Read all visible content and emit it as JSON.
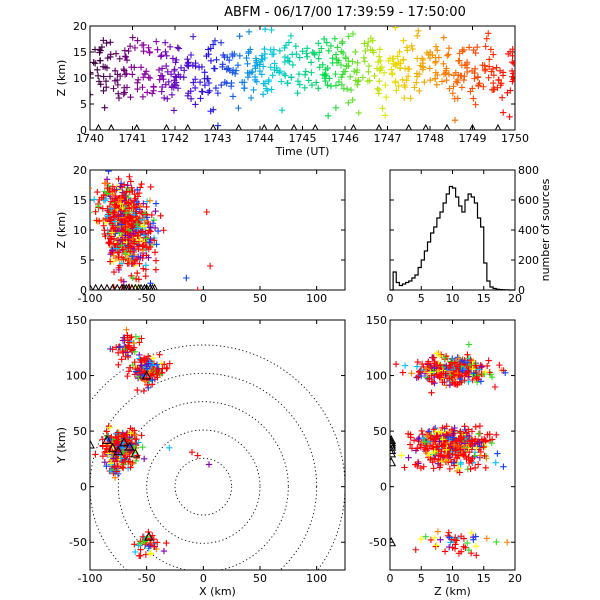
{
  "title": "ABFM - 06/17/00 17:39:59 - 17:50:00",
  "chart_data": [
    {
      "panel": "altitude-time",
      "type": "scatter",
      "xlabel": "Time (UT)",
      "ylabel": "Z (km)",
      "xlim": [
        1740,
        1750
      ],
      "ylim": [
        0,
        20
      ],
      "xticks": [
        "1740",
        "1741",
        "1742",
        "1743",
        "1744",
        "1745",
        "1746",
        "1747",
        "1748",
        "1749",
        "1750"
      ],
      "yticks": [
        "0",
        "5",
        "10",
        "15",
        "20"
      ],
      "color_by": "time",
      "clusters": [
        {
          "x": 1740.5,
          "z": 12,
          "n": 60
        },
        {
          "x": 1741.5,
          "z": 11,
          "n": 60
        },
        {
          "x": 1742.5,
          "z": 11,
          "n": 60
        },
        {
          "x": 1743.5,
          "z": 12,
          "n": 60
        },
        {
          "x": 1744.5,
          "z": 12,
          "n": 60
        },
        {
          "x": 1745.5,
          "z": 12,
          "n": 60
        },
        {
          "x": 1746.5,
          "z": 11,
          "n": 60
        },
        {
          "x": 1747.5,
          "z": 12,
          "n": 60
        },
        {
          "x": 1748.5,
          "z": 11,
          "n": 60
        },
        {
          "x": 1749.5,
          "z": 11,
          "n": 60
        }
      ],
      "stations_x": [
        1740.2,
        1740.5,
        1741.1,
        1741.8,
        1742.3,
        1742.9,
        1743.5,
        1744.1,
        1744.4,
        1744.8,
        1745.3,
        1746.2,
        1746.8,
        1747.5,
        1747.9,
        1748.4,
        1749.0,
        1749.6
      ]
    },
    {
      "panel": "altitude-x",
      "type": "scatter",
      "xlabel": "",
      "ylabel": "Z (km)",
      "xlim": [
        -100,
        125
      ],
      "ylim": [
        0,
        20
      ],
      "xticks": [
        "-100",
        "-50",
        "0",
        "50",
        "100"
      ],
      "yticks": [
        "0",
        "5",
        "10",
        "15",
        "20"
      ],
      "clusters": [
        {
          "x": -70,
          "z": 11,
          "n": 420
        },
        {
          "x": -55,
          "z": 9,
          "n": 150
        },
        {
          "x": -82,
          "z": 14,
          "n": 80
        }
      ],
      "outliers": [
        {
          "x": 3,
          "z": 13
        },
        {
          "x": 6,
          "z": 4
        },
        {
          "x": -15,
          "z": 2
        },
        {
          "x": -5,
          "z": 0
        }
      ],
      "stations_x": [
        -100,
        -95,
        -90,
        -85,
        -80,
        -76,
        -72,
        -70,
        -68,
        -66,
        -63,
        -60,
        -57,
        -55,
        -52,
        -50,
        -47,
        -45,
        -43
      ]
    },
    {
      "panel": "height-histogram",
      "type": "line",
      "xlabel": "",
      "ylabel": "number of sources",
      "xlim": [
        0,
        20
      ],
      "ylim": [
        0,
        800
      ],
      "xticks": [
        "0",
        "5",
        "10",
        "15",
        "20"
      ],
      "yticks": [
        "0",
        "200",
        "400",
        "600",
        "800"
      ],
      "bin_width_km": 0.5,
      "counts": [
        0,
        120,
        50,
        30,
        40,
        50,
        60,
        80,
        100,
        150,
        200,
        260,
        320,
        380,
        420,
        480,
        520,
        580,
        640,
        690,
        680,
        620,
        560,
        520,
        600,
        640,
        620,
        580,
        480,
        420,
        180,
        60,
        20,
        10,
        5,
        3,
        2,
        1,
        0,
        0
      ]
    },
    {
      "panel": "plan-view",
      "type": "scatter",
      "xlabel": "X (km)",
      "ylabel": "Y (km)",
      "xlim": [
        -100,
        125
      ],
      "ylim": [
        -75,
        150
      ],
      "xticks": [
        "-100",
        "-50",
        "0",
        "50",
        "100"
      ],
      "yticks": [
        "-50",
        "0",
        "50",
        "100",
        "150"
      ],
      "range_rings_km": [
        25,
        50,
        75,
        100,
        125
      ],
      "clusters": [
        {
          "x": -50,
          "y": 105,
          "n": 140
        },
        {
          "x": -68,
          "y": 125,
          "n": 50
        },
        {
          "x": -72,
          "y": 38,
          "n": 260
        },
        {
          "x": -75,
          "y": 22,
          "n": 60
        },
        {
          "x": -50,
          "y": -52,
          "n": 40
        }
      ],
      "outliers": [
        {
          "x": -10,
          "y": 31
        },
        {
          "x": -5,
          "y": 28
        },
        {
          "x": 5,
          "y": 20
        },
        {
          "x": -30,
          "y": 35
        }
      ],
      "stations": [
        {
          "x": -100,
          "y": 38
        },
        {
          "x": -85,
          "y": 42
        },
        {
          "x": -80,
          "y": 35
        },
        {
          "x": -75,
          "y": 32
        },
        {
          "x": -70,
          "y": 40
        },
        {
          "x": -65,
          "y": 36
        },
        {
          "x": -60,
          "y": 30
        },
        {
          "x": -50,
          "y": 100
        },
        {
          "x": -48,
          "y": -45
        }
      ]
    },
    {
      "panel": "y-altitude",
      "type": "scatter",
      "xlabel": "Z (km)",
      "ylabel": "",
      "xlim": [
        0,
        20
      ],
      "ylim": [
        -75,
        150
      ],
      "xticks": [
        "0",
        "5",
        "10",
        "15",
        "20"
      ],
      "yticks": [
        "-50",
        "0",
        "50",
        "100",
        "150"
      ],
      "clusters": [
        {
          "z": 10,
          "y": 105,
          "n": 300
        },
        {
          "z": 10,
          "y": 40,
          "n": 320
        },
        {
          "z": 10,
          "y": 25,
          "n": 90
        },
        {
          "z": 11,
          "y": -50,
          "n": 45
        }
      ],
      "stations_y": [
        -50,
        22,
        30,
        33,
        36,
        38,
        40,
        42
      ]
    }
  ]
}
